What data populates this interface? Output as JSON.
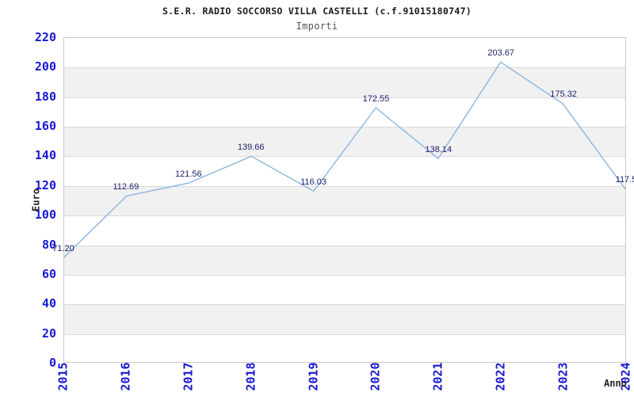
{
  "chart_data": {
    "type": "line",
    "title": "S.E.R. RADIO SOCCORSO VILLA CASTELLI (c.f.91015180747)",
    "subtitle": "Importi",
    "xlabel": "Anno",
    "ylabel": "Euro",
    "categories": [
      "2015",
      "2016",
      "2017",
      "2018",
      "2019",
      "2020",
      "2021",
      "2022",
      "2023",
      "2024"
    ],
    "values": [
      71.2,
      112.69,
      121.56,
      139.66,
      116.03,
      172.55,
      138.14,
      203.67,
      175.32,
      117.5
    ],
    "point_labels": [
      "71.20",
      "112.69",
      "121.56",
      "139.66",
      "116.03",
      "172.55",
      "138.14",
      "203.67",
      "175.32",
      "117.5"
    ],
    "ylim": [
      0,
      220
    ],
    "ytick_step": 20,
    "grid": true,
    "legend": "none",
    "band_fill": "alternating-horizontal",
    "colors": {
      "line": "#82b1e1",
      "tick_text": "#1818d2",
      "point_label_text": "#1c1c6e",
      "band": "#f1f1f1",
      "gridline": "#dadada",
      "plot_border": "#c8c8c8",
      "title_text": "#1a1a1a",
      "subtitle_text": "#555555",
      "axis_title_text": "#222222",
      "background": "#ffffff"
    }
  }
}
